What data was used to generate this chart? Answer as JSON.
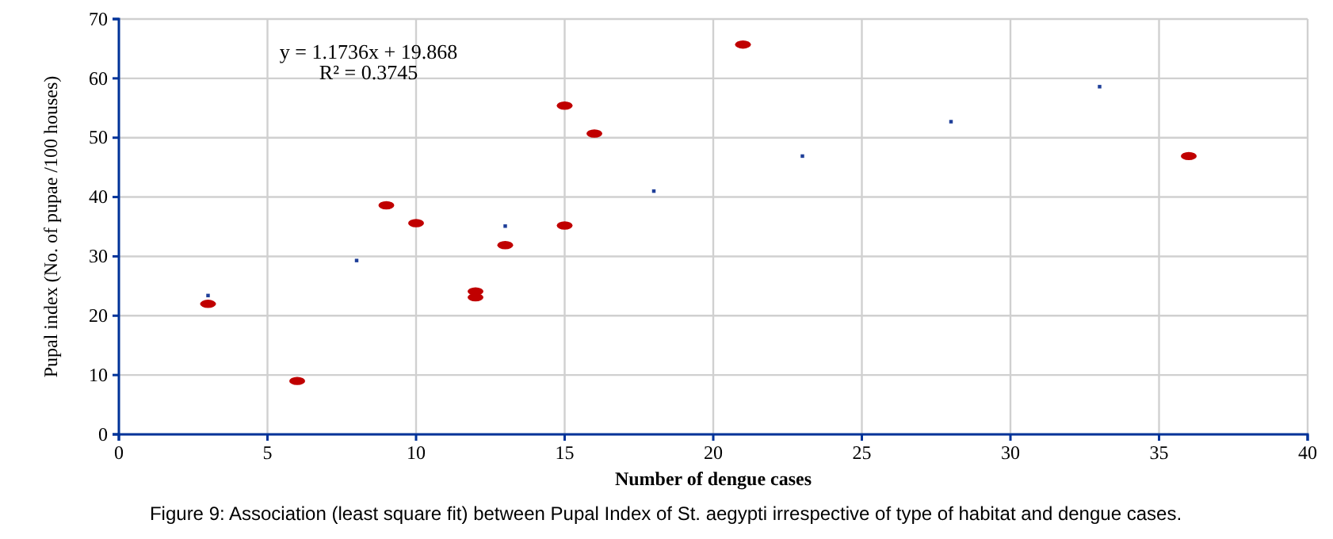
{
  "chart_data": {
    "type": "scatter",
    "xlabel": "Number of dengue cases",
    "ylabel": "Pupal index (No. of pupae /100 houses)",
    "xlim": [
      0,
      40
    ],
    "xticks": [
      0,
      5,
      10,
      15,
      20,
      25,
      30,
      35,
      40
    ],
    "ylim": [
      0,
      70
    ],
    "yticks": [
      0,
      10,
      20,
      30,
      40,
      50,
      60,
      70
    ],
    "grid": true,
    "marker": "circle",
    "series": [
      {
        "color": "#c00000",
        "x": [
          3,
          6,
          9,
          10,
          12,
          12,
          13,
          15,
          15,
          16,
          21,
          36
        ],
        "values": [
          22.0,
          9.0,
          38.6,
          35.6,
          24.1,
          23.1,
          31.9,
          55.4,
          35.2,
          50.7,
          65.7,
          46.9
        ]
      },
      {
        "color": "#1f3f99",
        "marker": "square",
        "x": [
          3,
          8,
          13,
          18,
          23,
          28,
          33
        ],
        "values": [
          23.4,
          29.3,
          35.1,
          41.0,
          46.9,
          52.7,
          58.6
        ]
      }
    ],
    "annotations": [
      "y = 1.1736x + 19.868",
      "R² = 0.3745",
      "Figure 9: Association (least square fit) between Pupal Index of St. aegypti irrespective of type of habitat and dengue cases."
    ]
  }
}
